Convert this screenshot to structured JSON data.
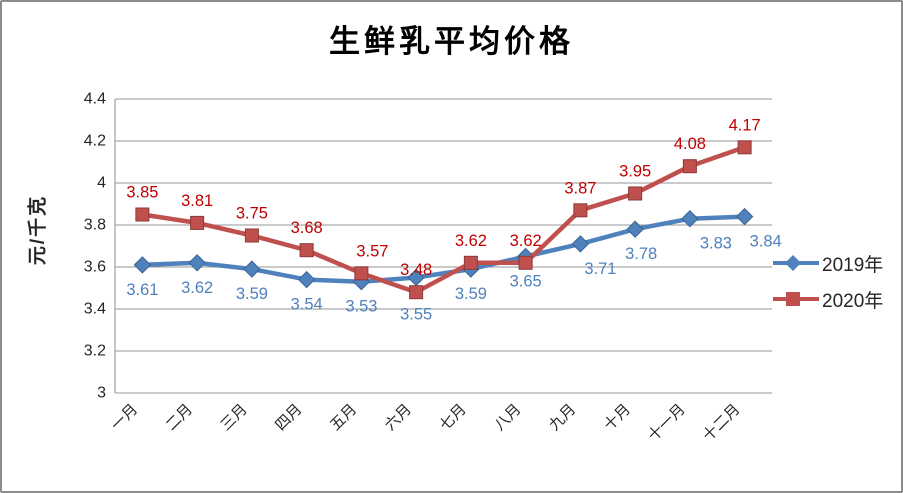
{
  "chart_data": {
    "type": "line",
    "title": "生鲜乳平均价格",
    "ylabel": "元/千克",
    "xlabel": "",
    "categories": [
      "一月",
      "二月",
      "三月",
      "四月",
      "五月",
      "六月",
      "七月",
      "八月",
      "九月",
      "十月",
      "十一月",
      "十二月"
    ],
    "series": [
      {
        "name": "2019年",
        "marker": "diamond",
        "color": "#4F81BD",
        "edge_color": "#396491",
        "label_color": "#4F81BD",
        "label_position": "below",
        "values": [
          3.61,
          3.62,
          3.59,
          3.54,
          3.53,
          3.55,
          3.59,
          3.65,
          3.71,
          3.78,
          3.83,
          3.84
        ]
      },
      {
        "name": "2020年",
        "marker": "square",
        "color": "#C0504D",
        "edge_color": "#8C3836",
        "label_color": "#C00000",
        "label_position": "above",
        "values": [
          3.85,
          3.81,
          3.75,
          3.68,
          3.57,
          3.48,
          3.62,
          3.62,
          3.87,
          3.95,
          4.08,
          4.17
        ]
      }
    ],
    "ylim": [
      3,
      4.4
    ],
    "yticks": [
      {
        "label": "3",
        "value": 3.0
      },
      {
        "label": "3.2",
        "value": 3.2
      },
      {
        "label": "3.4",
        "value": 3.4
      },
      {
        "label": "3.6",
        "value": 3.6
      },
      {
        "label": "3.8",
        "value": 3.8
      },
      {
        "label": "4",
        "value": 4.0
      },
      {
        "label": "4.2",
        "value": 4.2
      },
      {
        "label": "4.4",
        "value": 4.4
      }
    ],
    "grid": true,
    "grid_color": "#969696",
    "axis_color": "#8E8E8E",
    "tick_label_color": "#262626",
    "legend_position": "right"
  }
}
